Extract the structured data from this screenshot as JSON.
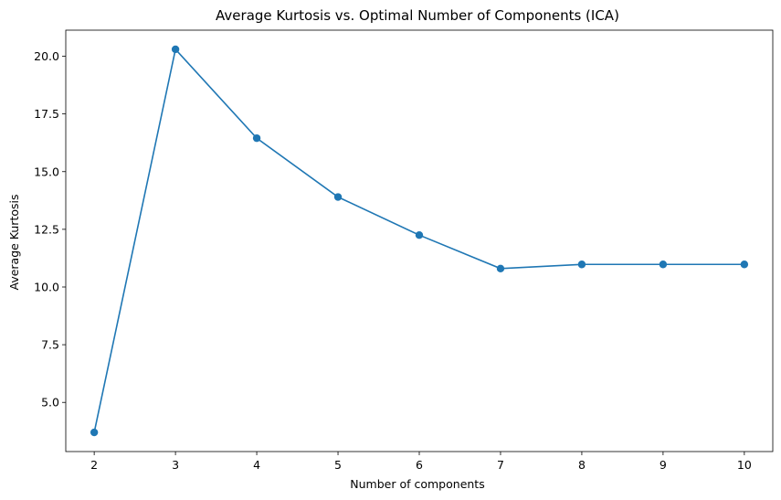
{
  "chart_data": {
    "type": "line",
    "title": "Average Kurtosis vs. Optimal Number of Components (ICA)",
    "xlabel": "Number of components",
    "ylabel": "Average Kurtosis",
    "x": [
      2,
      3,
      4,
      5,
      6,
      7,
      8,
      9,
      10
    ],
    "series": [
      {
        "values": [
          3.7,
          20.3,
          16.45,
          13.9,
          12.25,
          10.8,
          10.98,
          10.98,
          10.98
        ],
        "color": "#1f77b4",
        "marker": "circle"
      }
    ],
    "xticks": [
      "2",
      "3",
      "4",
      "5",
      "6",
      "7",
      "8",
      "9",
      "10"
    ],
    "yticks": [
      "5.0",
      "7.5",
      "10.0",
      "12.5",
      "15.0",
      "17.5",
      "20.0"
    ],
    "xlim": [
      1.65,
      10.35
    ],
    "ylim": [
      2.87,
      21.13
    ],
    "grid": false,
    "legend": "none"
  }
}
